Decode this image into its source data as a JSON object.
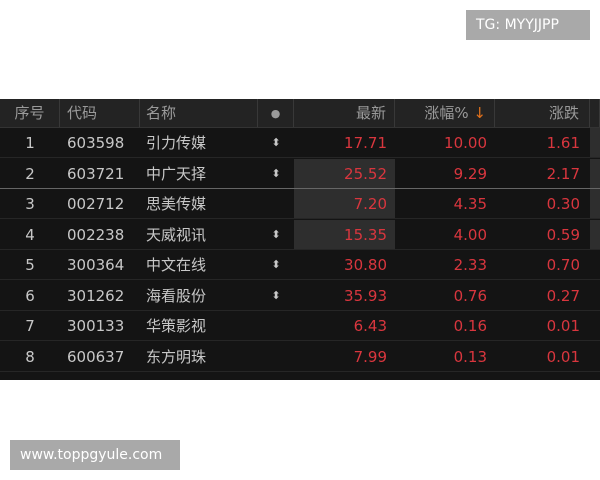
{
  "watermarks": {
    "top": "TG: MYYJJPP",
    "bottom": "www.toppgyule.com"
  },
  "colors": {
    "up": "#d9363e",
    "sort_arrow": "#e0701c",
    "background": "#141414"
  },
  "header": {
    "index": "序号",
    "code": "代码",
    "name": "名称",
    "dot": "●",
    "latest": "最新",
    "change_pct": "涨幅%",
    "sort_icon": "↓",
    "change": "涨跌"
  },
  "rows": [
    {
      "index": "1",
      "code": "603598",
      "name": "引力传媒",
      "mark": "⬍",
      "latest": "17.71",
      "change_pct": "10.00",
      "change": "1.61"
    },
    {
      "index": "2",
      "code": "603721",
      "name": "中广天择",
      "mark": "⬍",
      "latest": "25.52",
      "change_pct": "9.29",
      "change": "2.17"
    },
    {
      "index": "3",
      "code": "002712",
      "name": "思美传媒",
      "mark": "",
      "latest": "7.20",
      "change_pct": "4.35",
      "change": "0.30"
    },
    {
      "index": "4",
      "code": "002238",
      "name": "天威视讯",
      "mark": "⬍",
      "latest": "15.35",
      "change_pct": "4.00",
      "change": "0.59"
    },
    {
      "index": "5",
      "code": "300364",
      "name": "中文在线",
      "mark": "⬍",
      "latest": "30.80",
      "change_pct": "2.33",
      "change": "0.70"
    },
    {
      "index": "6",
      "code": "301262",
      "name": "海看股份",
      "mark": "⬍",
      "latest": "35.93",
      "change_pct": "0.76",
      "change": "0.27"
    },
    {
      "index": "7",
      "code": "300133",
      "name": "华策影视",
      "mark": "",
      "latest": "6.43",
      "change_pct": "0.16",
      "change": "0.01"
    },
    {
      "index": "8",
      "code": "600637",
      "name": "东方明珠",
      "mark": "",
      "latest": "7.99",
      "change_pct": "0.13",
      "change": "0.01"
    }
  ]
}
